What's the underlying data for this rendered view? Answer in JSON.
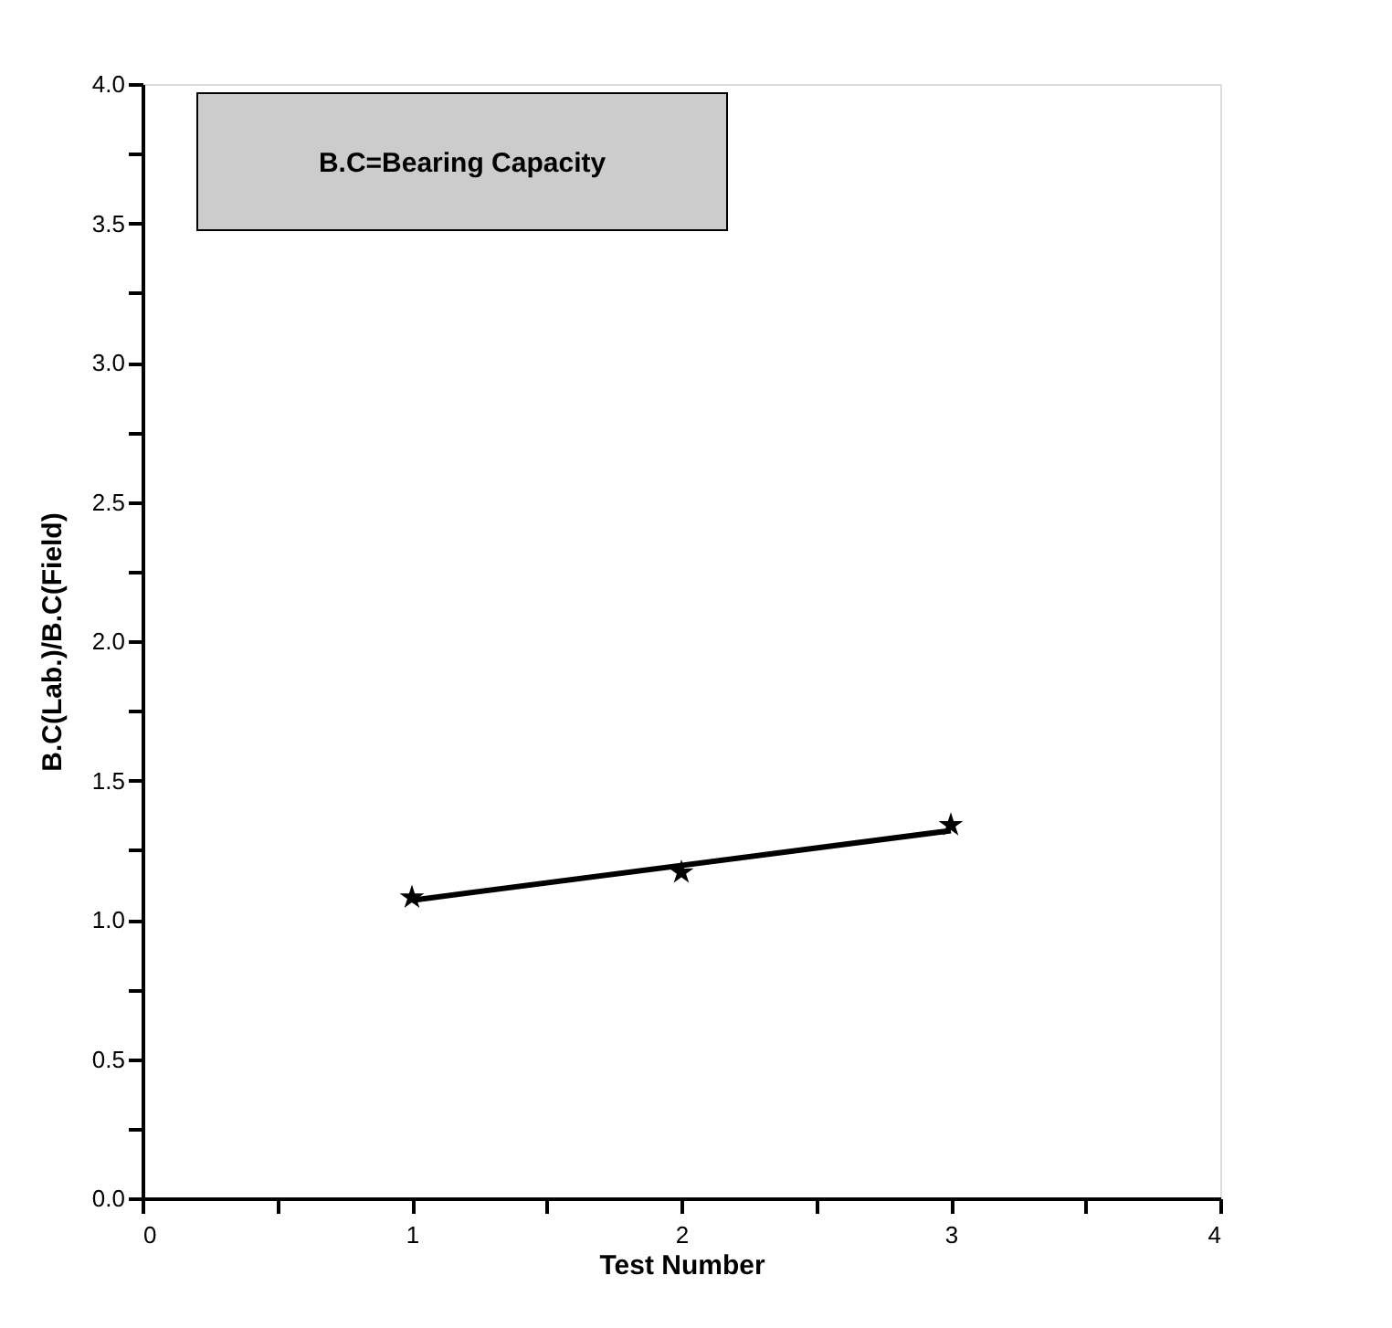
{
  "chart_data": {
    "type": "scatter",
    "xlabel": "Test Number",
    "ylabel": "B.C(Lab.)/B.C(Field)",
    "annotations": [
      "B.C=Bearing Capacity"
    ],
    "x": [
      1,
      2,
      3
    ],
    "series": [
      {
        "color": "#000000",
        "marker": "star",
        "values": [
          1.08,
          1.17,
          1.34
        ]
      },
      {
        "type": "line",
        "color": "#000000",
        "x": [
          1,
          3
        ],
        "values": [
          1.07,
          1.32
        ],
        "line_style": "solid"
      }
    ],
    "xlim": [
      0,
      4
    ],
    "ylim": [
      0,
      4
    ],
    "xticks": [
      0,
      {
        "value": 0.5,
        "label": null
      },
      1,
      {
        "value": 1.5,
        "label": null
      },
      2,
      {
        "value": 2.5,
        "label": null
      },
      3,
      {
        "value": 3.5,
        "label": null
      },
      4
    ],
    "yticks": [
      {
        "value": 0,
        "label": "0.0"
      },
      {
        "value": 0.25,
        "label": null
      },
      {
        "value": 0.5,
        "label": "0.5"
      },
      {
        "value": 0.75,
        "label": null
      },
      {
        "value": 1,
        "label": "1.0"
      },
      {
        "value": 1.25,
        "label": null
      },
      {
        "value": 1.5,
        "label": "1.5"
      },
      {
        "value": 1.75,
        "label": null
      },
      {
        "value": 2,
        "label": "2.0"
      },
      {
        "value": 2.25,
        "label": null
      },
      {
        "value": 2.5,
        "label": "2.5"
      },
      {
        "value": 2.75,
        "label": null
      },
      {
        "value": 3,
        "label": "3.0"
      },
      {
        "value": 3.25,
        "label": null
      },
      {
        "value": 3.5,
        "label": "3.5"
      },
      {
        "value": 3.75,
        "label": null
      },
      {
        "value": 4,
        "label": "4.0"
      }
    ],
    "grid": false
  }
}
